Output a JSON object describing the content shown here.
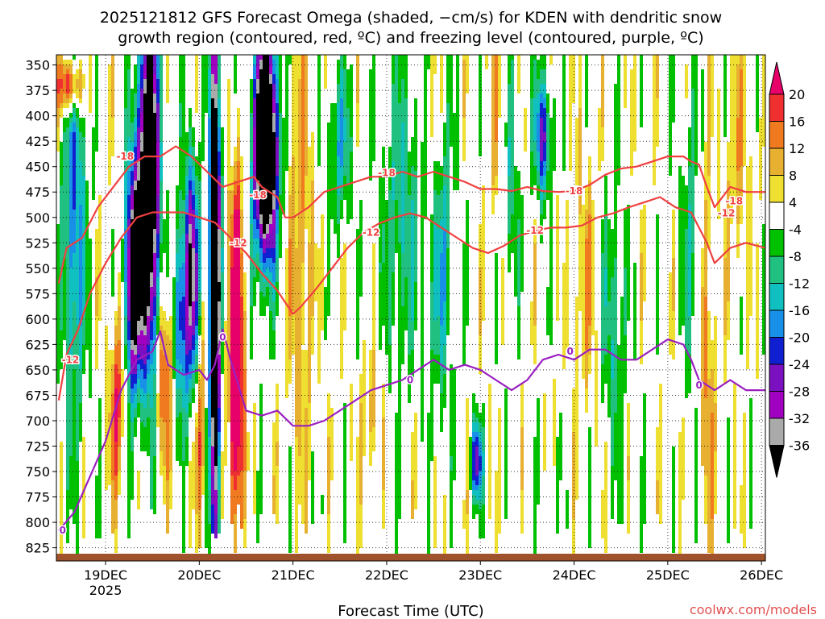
{
  "chart_data": {
    "type": "heatmap",
    "title_line1": "2025121812 GFS Forecast Omega (shaded, −cm/s) for KDEN with dendritic snow",
    "title_line2": "growth region (contoured, red, ºC) and freezing level (contoured, purple, ºC)",
    "xlabel": "Forecast Time (UTC)",
    "credit": "coolwx.com/models",
    "x_range_hours": [
      -12.6,
      169
    ],
    "x_ticks": [
      {
        "hours": 0,
        "label": "19DEC",
        "sublabel": "2025"
      },
      {
        "hours": 24,
        "label": "20DEC",
        "sublabel": ""
      },
      {
        "hours": 48,
        "label": "21DEC",
        "sublabel": ""
      },
      {
        "hours": 72,
        "label": "22DEC",
        "sublabel": ""
      },
      {
        "hours": 96,
        "label": "23DEC",
        "sublabel": ""
      },
      {
        "hours": 120,
        "label": "24DEC",
        "sublabel": ""
      },
      {
        "hours": 144,
        "label": "25DEC",
        "sublabel": ""
      },
      {
        "hours": 168,
        "label": "26DEC",
        "sublabel": ""
      }
    ],
    "y_axis_pressure_hpa": {
      "top": 340,
      "bottom": 838,
      "ticks": [
        "350",
        "375",
        "400",
        "425",
        "450",
        "475",
        "500",
        "525",
        "550",
        "575",
        "600",
        "625",
        "650",
        "675",
        "700",
        "725",
        "750",
        "775",
        "800",
        "825"
      ]
    },
    "colorbar": {
      "labels": [
        "20",
        "16",
        "12",
        "8",
        "4",
        "-4",
        "-8",
        "-12",
        "-16",
        "-20",
        "-24",
        "-28",
        "-32",
        "-36"
      ],
      "colors": [
        "#e8006a",
        "#f03030",
        "#f07a20",
        "#e8b030",
        "#eedf30",
        "#ffffff",
        "#00c000",
        "#20c080",
        "#10c0c0",
        "#1890e8",
        "#1020d0",
        "#7a10c0",
        "#a000c0",
        "#aaaaaa",
        "#000000"
      ]
    },
    "features": [
      {
        "name": "strong ascent core",
        "time_hours": [
          8,
          15
        ],
        "pressure_hpa": [
          345,
          690
        ],
        "omega_min": -36
      },
      {
        "name": "strong ascent core",
        "time_hours": [
          26,
          30
        ],
        "pressure_hpa": [
          345,
          830
        ],
        "omega_min": -36
      },
      {
        "name": "strong ascent core",
        "time_hours": [
          36,
          46
        ],
        "pressure_hpa": [
          345,
          560
        ],
        "omega_min": -36
      },
      {
        "name": "subsidence maximum",
        "time_hours": [
          31,
          36
        ],
        "pressure_hpa": [
          480,
          820
        ],
        "omega_max": 20
      },
      {
        "name": "subsidence maximum",
        "time_hours": [
          -12,
          -6
        ],
        "pressure_hpa": [
          345,
          400
        ],
        "omega_max": 20
      },
      {
        "name": "ascent band",
        "time_hours": [
          110,
          116
        ],
        "pressure_hpa": [
          380,
          480
        ],
        "omega_min": -24
      },
      {
        "name": "ascent band",
        "time_hours": [
          94,
          97
        ],
        "pressure_hpa": [
          700,
          770
        ],
        "omega_min": -24
      }
    ],
    "contours": [
      {
        "label": "-18",
        "color": "#f04040",
        "points": [
          [
            -12,
            565
          ],
          [
            -10,
            530
          ],
          [
            -6,
            520
          ],
          [
            -2,
            490
          ],
          [
            2,
            470
          ],
          [
            6,
            450
          ],
          [
            10,
            440
          ],
          [
            14,
            440
          ],
          [
            18,
            430
          ],
          [
            22,
            440
          ],
          [
            26,
            455
          ],
          [
            30,
            470
          ],
          [
            34,
            465
          ],
          [
            38,
            460
          ],
          [
            40,
            470
          ],
          [
            44,
            480
          ],
          [
            46,
            500
          ],
          [
            48,
            500
          ],
          [
            52,
            490
          ],
          [
            56,
            475
          ],
          [
            60,
            470
          ],
          [
            64,
            465
          ],
          [
            68,
            460
          ],
          [
            72,
            460
          ],
          [
            76,
            455
          ],
          [
            80,
            460
          ],
          [
            84,
            455
          ],
          [
            88,
            460
          ],
          [
            92,
            465
          ],
          [
            96,
            472
          ],
          [
            100,
            472
          ],
          [
            104,
            474
          ],
          [
            108,
            470
          ],
          [
            112,
            474
          ],
          [
            116,
            475
          ],
          [
            120,
            474
          ],
          [
            124,
            468
          ],
          [
            128,
            458
          ],
          [
            132,
            452
          ],
          [
            136,
            450
          ],
          [
            140,
            445
          ],
          [
            144,
            440
          ],
          [
            148,
            440
          ],
          [
            150,
            445
          ],
          [
            152,
            448
          ],
          [
            154,
            470
          ],
          [
            156,
            490
          ],
          [
            160,
            470
          ],
          [
            164,
            475
          ],
          [
            169,
            475
          ]
        ],
        "label_points": [
          [
            5,
            440
          ],
          [
            39,
            478
          ],
          [
            72,
            456
          ],
          [
            120,
            474
          ],
          [
            161,
            484
          ]
        ]
      },
      {
        "label": "-12",
        "color": "#f04040",
        "points": [
          [
            -12,
            680
          ],
          [
            -10,
            635
          ],
          [
            -7,
            610
          ],
          [
            -4,
            575
          ],
          [
            0,
            545
          ],
          [
            4,
            520
          ],
          [
            8,
            500
          ],
          [
            12,
            495
          ],
          [
            16,
            495
          ],
          [
            20,
            495
          ],
          [
            24,
            500
          ],
          [
            28,
            505
          ],
          [
            32,
            520
          ],
          [
            36,
            535
          ],
          [
            40,
            555
          ],
          [
            44,
            572
          ],
          [
            48,
            595
          ],
          [
            50,
            588
          ],
          [
            54,
            570
          ],
          [
            58,
            550
          ],
          [
            62,
            530
          ],
          [
            66,
            515
          ],
          [
            70,
            506
          ],
          [
            74,
            500
          ],
          [
            78,
            496
          ],
          [
            82,
            500
          ],
          [
            86,
            510
          ],
          [
            90,
            520
          ],
          [
            94,
            530
          ],
          [
            98,
            535
          ],
          [
            102,
            528
          ],
          [
            106,
            518
          ],
          [
            110,
            513
          ],
          [
            114,
            510
          ],
          [
            118,
            510
          ],
          [
            122,
            508
          ],
          [
            126,
            500
          ],
          [
            130,
            496
          ],
          [
            134,
            490
          ],
          [
            138,
            485
          ],
          [
            142,
            480
          ],
          [
            146,
            490
          ],
          [
            150,
            495
          ],
          [
            154,
            525
          ],
          [
            156,
            545
          ],
          [
            160,
            530
          ],
          [
            164,
            525
          ],
          [
            169,
            530
          ]
        ],
        "label_points": [
          [
            -9,
            640
          ],
          [
            34,
            525
          ],
          [
            68,
            515
          ],
          [
            110,
            513
          ],
          [
            159,
            496
          ]
        ]
      },
      {
        "label": "0",
        "color": "#9a20c0",
        "points": [
          [
            -12,
            808
          ],
          [
            -8,
            790
          ],
          [
            -4,
            755
          ],
          [
            0,
            720
          ],
          [
            4,
            670
          ],
          [
            8,
            640
          ],
          [
            12,
            632
          ],
          [
            14,
            612
          ],
          [
            16,
            645
          ],
          [
            20,
            655
          ],
          [
            24,
            650
          ],
          [
            26,
            660
          ],
          [
            28,
            645
          ],
          [
            30,
            610
          ],
          [
            32,
            640
          ],
          [
            36,
            690
          ],
          [
            40,
            695
          ],
          [
            44,
            690
          ],
          [
            48,
            705
          ],
          [
            52,
            705
          ],
          [
            56,
            700
          ],
          [
            60,
            690
          ],
          [
            64,
            680
          ],
          [
            68,
            670
          ],
          [
            72,
            665
          ],
          [
            76,
            660
          ],
          [
            80,
            650
          ],
          [
            84,
            640
          ],
          [
            88,
            650
          ],
          [
            92,
            645
          ],
          [
            96,
            650
          ],
          [
            100,
            660
          ],
          [
            104,
            670
          ],
          [
            108,
            660
          ],
          [
            112,
            640
          ],
          [
            116,
            635
          ],
          [
            120,
            640
          ],
          [
            124,
            630
          ],
          [
            128,
            630
          ],
          [
            132,
            640
          ],
          [
            136,
            640
          ],
          [
            140,
            630
          ],
          [
            144,
            620
          ],
          [
            148,
            625
          ],
          [
            150,
            640
          ],
          [
            152,
            660
          ],
          [
            156,
            670
          ],
          [
            160,
            660
          ],
          [
            164,
            670
          ],
          [
            169,
            670
          ]
        ],
        "label_points": [
          [
            -11,
            808
          ],
          [
            30,
            618
          ],
          [
            78,
            660
          ],
          [
            119,
            632
          ],
          [
            152,
            665
          ]
        ]
      }
    ]
  }
}
